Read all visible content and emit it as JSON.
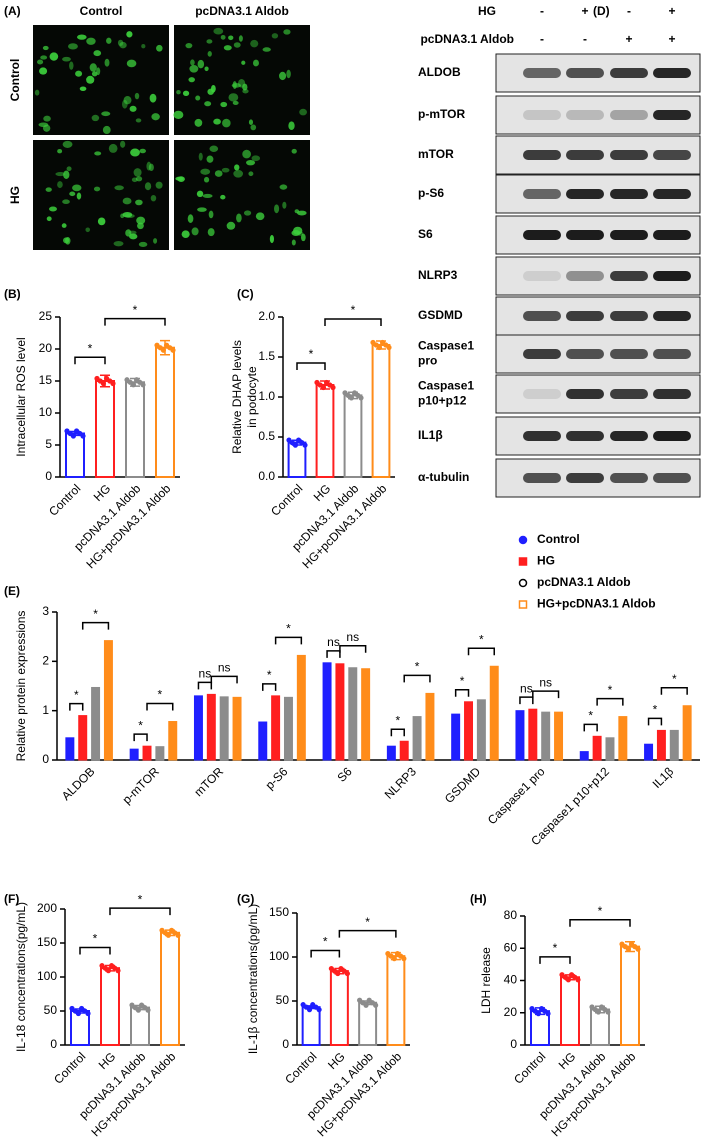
{
  "images": {
    "panel_label": "(A)",
    "columns": [
      "Control",
      "pcDNA3.1 Aldob"
    ],
    "rows": [
      "Control",
      "HG"
    ]
  },
  "western_blot": {
    "panel_label": "(D)",
    "conditions": [
      {
        "label": "HG",
        "signs": [
          "-",
          "+",
          "-",
          "+"
        ]
      },
      {
        "label": "pcDNA3.1 Aldob",
        "signs": [
          "-",
          "-",
          "+",
          "+"
        ]
      }
    ],
    "proteins": [
      [
        "ALDOB"
      ],
      [
        "p-mTOR"
      ],
      [
        "mTOR"
      ],
      [
        "p-S6"
      ],
      [
        "S6"
      ],
      [
        "NLRP3"
      ],
      [
        "GSDMD"
      ],
      [
        "Caspase1",
        "pro"
      ],
      [
        "Caspase1",
        "p10+p12"
      ],
      [
        "IL1β"
      ],
      [
        "α-tubulin"
      ]
    ]
  },
  "chart_data": [
    {
      "type": "bar",
      "panel_label": "(B)",
      "ylabel": [
        "Intracellular ROS level"
      ],
      "categories": [
        "Control",
        "HG",
        "pcDNA3.1 Aldob",
        "HG+pcDNA3.1 Aldob"
      ],
      "values": [
        6.8,
        15,
        14.8,
        20.2
      ],
      "errors": [
        0.3,
        0.9,
        0.6,
        1.1
      ],
      "colors": [
        "#1f1fff",
        "#ff1f1f",
        "#8c8c8c",
        "#ff8c1a"
      ],
      "ylim": [
        0,
        25
      ],
      "yticks": [
        0,
        5,
        10,
        15,
        20,
        25
      ],
      "significance": [
        {
          "between": [
            0,
            1
          ],
          "label": "*"
        },
        {
          "between": [
            1,
            3
          ],
          "label": "*"
        }
      ]
    },
    {
      "type": "bar",
      "panel_label": "(C)",
      "ylabel": [
        "Relative DHAP levels",
        "in podocyte"
      ],
      "categories": [
        "Control",
        "HG",
        "pcDNA3.1 Aldob",
        "HG+pcDNA3.1 Aldob"
      ],
      "values": [
        0.43,
        1.15,
        1.02,
        1.65
      ],
      "errors": [
        0.03,
        0.05,
        0.04,
        0.05
      ],
      "colors": [
        "#1f1fff",
        "#ff1f1f",
        "#8c8c8c",
        "#ff8c1a"
      ],
      "ylim": [
        0,
        2
      ],
      "yticks": [
        {
          "value": 0,
          "label": "0.0"
        },
        {
          "value": 0.5,
          "label": "0.5"
        },
        {
          "value": 1,
          "label": "1.0"
        },
        {
          "value": 1.5,
          "label": "1.5"
        },
        {
          "value": 2,
          "label": "2.0"
        }
      ],
      "significance": [
        {
          "between": [
            0,
            1
          ],
          "label": "*"
        },
        {
          "between": [
            1,
            3
          ],
          "label": "*"
        }
      ]
    },
    {
      "type": "bar",
      "panel_label": "(E)",
      "ylabel": [
        "Relative protein expressions"
      ],
      "categories": [
        "ALDOB",
        "p-mTOR",
        "mTOR",
        "p-S6",
        "S6",
        "NLRP3",
        "GSDMD",
        "Caspase1 pro",
        "Caspase1 p10+p12",
        "IL1β"
      ],
      "series": [
        {
          "name": "Control",
          "color": "#1f1fff",
          "values": [
            0.45,
            0.22,
            1.3,
            0.77,
            1.97,
            0.28,
            0.93,
            1.0,
            0.17,
            0.32
          ]
        },
        {
          "name": "HG",
          "color": "#ff1f1f",
          "values": [
            0.9,
            0.28,
            1.33,
            1.3,
            1.95,
            0.38,
            1.18,
            1.03,
            0.48,
            0.6
          ]
        },
        {
          "name": "pcDNA3.1 Aldob",
          "color": "#8c8c8c",
          "values": [
            1.47,
            0.27,
            1.28,
            1.27,
            1.87,
            0.88,
            1.22,
            0.97,
            0.45,
            0.6
          ]
        },
        {
          "name": "HG+pcDNA3.1 Aldob",
          "color": "#ff8c1a",
          "values": [
            2.42,
            0.78,
            1.27,
            2.12,
            1.85,
            1.35,
            1.9,
            0.97,
            0.88,
            1.1
          ]
        }
      ],
      "ylim": [
        0,
        3
      ],
      "yticks": [
        0,
        1,
        2,
        3
      ],
      "significance": [
        [
          {
            "between": [
              0,
              1
            ],
            "label": "*"
          },
          {
            "between": [
              1,
              3
            ],
            "label": "*"
          }
        ],
        [
          {
            "between": [
              0,
              1
            ],
            "label": "*"
          },
          {
            "between": [
              1,
              3
            ],
            "label": "*"
          }
        ],
        [
          {
            "between": [
              0,
              1
            ],
            "label": "ns"
          },
          {
            "between": [
              1,
              3
            ],
            "label": "ns"
          }
        ],
        [
          {
            "between": [
              0,
              1
            ],
            "label": "*"
          },
          {
            "between": [
              1,
              3
            ],
            "label": "*"
          }
        ],
        [
          {
            "between": [
              0,
              1
            ],
            "label": "ns"
          },
          {
            "between": [
              1,
              3
            ],
            "label": "ns"
          }
        ],
        [
          {
            "between": [
              0,
              1
            ],
            "label": "*"
          },
          {
            "between": [
              1,
              3
            ],
            "label": "*"
          }
        ],
        [
          {
            "between": [
              0,
              1
            ],
            "label": "*"
          },
          {
            "between": [
              1,
              3
            ],
            "label": "*"
          }
        ],
        [
          {
            "between": [
              0,
              1
            ],
            "label": "ns"
          },
          {
            "between": [
              1,
              3
            ],
            "label": "ns"
          }
        ],
        [
          {
            "between": [
              0,
              1
            ],
            "label": "*"
          },
          {
            "between": [
              1,
              3
            ],
            "label": "*"
          }
        ],
        [
          {
            "between": [
              0,
              1
            ],
            "label": "*"
          },
          {
            "between": [
              1,
              3
            ],
            "label": "*"
          }
        ]
      ]
    },
    {
      "type": "bar",
      "panel_label": "(F)",
      "ylabel": [
        "IL-18 concentrations(pg/mL)"
      ],
      "categories": [
        "Control",
        "HG",
        "pcDNA3.1 Aldob",
        "HG+pcDNA3.1 Aldob"
      ],
      "values": [
        50,
        113,
        55,
        165
      ],
      "errors": [
        3,
        4,
        3,
        4
      ],
      "colors": [
        "#1f1fff",
        "#ff1f1f",
        "#8c8c8c",
        "#ff8c1a"
      ],
      "ylim": [
        0,
        200
      ],
      "yticks": [
        0,
        50,
        100,
        150,
        200
      ],
      "significance": [
        {
          "between": [
            0,
            1
          ],
          "label": "*"
        },
        {
          "between": [
            1,
            3
          ],
          "label": "*"
        }
      ]
    },
    {
      "type": "bar",
      "panel_label": "(G)",
      "ylabel": [
        "IL-1β concentrations(pg/mL)"
      ],
      "categories": [
        "Control",
        "HG",
        "pcDNA3.1 Aldob",
        "HG+pcDNA3.1 Aldob"
      ],
      "values": [
        43,
        84,
        48,
        101
      ],
      "errors": [
        1.5,
        3,
        2,
        4
      ],
      "colors": [
        "#1f1fff",
        "#ff1f1f",
        "#8c8c8c",
        "#ff8c1a"
      ],
      "ylim": [
        0,
        150
      ],
      "yticks": [
        0,
        50,
        100,
        150
      ],
      "significance": [
        {
          "between": [
            0,
            1
          ],
          "label": "*"
        },
        {
          "between": [
            1,
            3
          ],
          "label": "*"
        }
      ]
    },
    {
      "type": "bar",
      "panel_label": "(H)",
      "ylabel": [
        "LDH release"
      ],
      "categories": [
        "Control",
        "HG",
        "pcDNA3.1 Aldob",
        "HG+pcDNA3.1 Aldob"
      ],
      "values": [
        21,
        42,
        22,
        61
      ],
      "errors": [
        2,
        1.5,
        2,
        3
      ],
      "colors": [
        "#1f1fff",
        "#ff1f1f",
        "#8c8c8c",
        "#ff8c1a"
      ],
      "ylim": [
        0,
        80
      ],
      "yticks": [
        0,
        20,
        40,
        60,
        80
      ],
      "significance": [
        {
          "between": [
            0,
            1
          ],
          "label": "*"
        },
        {
          "between": [
            1,
            3
          ],
          "label": "*"
        }
      ]
    }
  ]
}
